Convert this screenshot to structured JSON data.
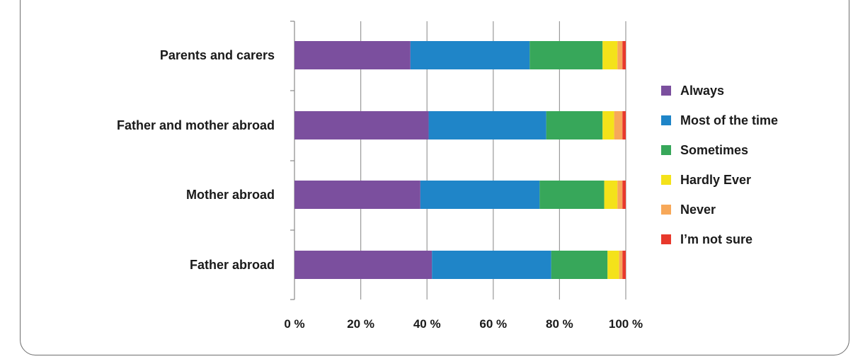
{
  "chart_data": {
    "type": "bar",
    "orientation": "horizontal",
    "stacked": true,
    "categories": [
      "Parents and carers",
      "Father and mother abroad",
      "Mother abroad",
      "Father abroad"
    ],
    "series": [
      {
        "name": "Always",
        "color": "#7b4f9e",
        "values": [
          35,
          40.5,
          38,
          41.5
        ]
      },
      {
        "name": "Most of the time",
        "color": "#1f85c8",
        "values": [
          36,
          35.5,
          36,
          36
        ]
      },
      {
        "name": "Sometimes",
        "color": "#37a75a",
        "values": [
          22,
          17,
          19.5,
          17
        ]
      },
      {
        "name": "Hardly Ever",
        "color": "#f4e21a",
        "values": [
          4.5,
          3.5,
          4,
          3.5
        ]
      },
      {
        "name": "Never",
        "color": "#f7a859",
        "values": [
          1.5,
          2.5,
          1.5,
          1
        ]
      },
      {
        "name": "I’m not sure",
        "color": "#e8392c",
        "values": [
          1,
          1,
          1,
          1
        ]
      }
    ],
    "xlim": [
      0,
      100
    ],
    "xticks": [
      "0 %",
      "20 %",
      "40 %",
      "60 %",
      "80 %",
      "100 %"
    ],
    "xtick_values": [
      0,
      20,
      40,
      60,
      80,
      100
    ],
    "grid": "vertical",
    "legend_position": "right"
  }
}
